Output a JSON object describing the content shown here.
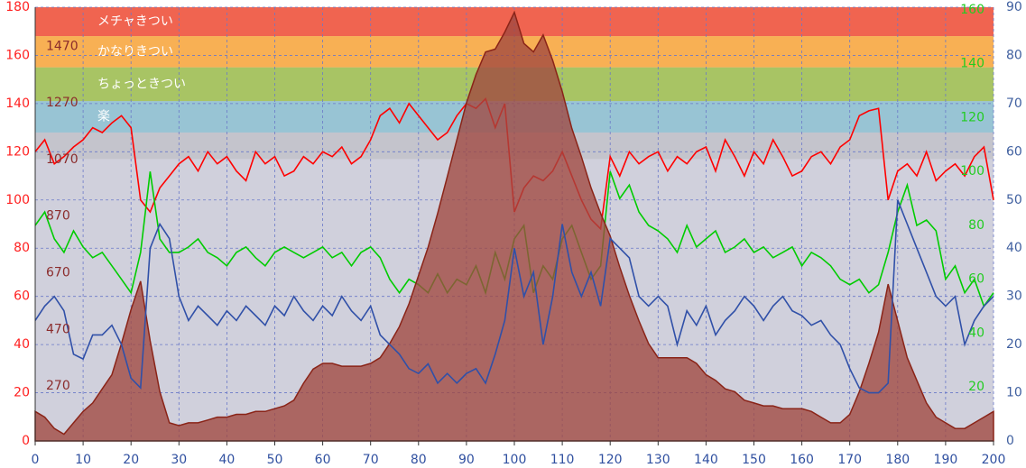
{
  "chart_data": {
    "type": "line",
    "x": [
      0,
      2,
      4,
      6,
      8,
      10,
      12,
      14,
      16,
      18,
      20,
      22,
      24,
      26,
      28,
      30,
      32,
      34,
      36,
      38,
      40,
      42,
      44,
      46,
      48,
      50,
      52,
      54,
      56,
      58,
      60,
      62,
      64,
      66,
      68,
      70,
      72,
      74,
      76,
      78,
      80,
      82,
      84,
      86,
      88,
      90,
      92,
      94,
      96,
      98,
      100,
      102,
      104,
      106,
      108,
      110,
      112,
      114,
      116,
      118,
      120,
      122,
      124,
      126,
      128,
      130,
      132,
      134,
      136,
      138,
      140,
      142,
      144,
      146,
      148,
      150,
      152,
      154,
      156,
      158,
      160,
      162,
      164,
      166,
      168,
      170,
      172,
      174,
      176,
      178,
      180,
      182,
      184,
      186,
      188,
      190,
      192,
      194,
      196,
      198,
      200
    ],
    "xlim": [
      0,
      200
    ],
    "xticks": [
      0,
      10,
      20,
      30,
      40,
      50,
      60,
      70,
      80,
      90,
      100,
      110,
      120,
      130,
      140,
      150,
      160,
      170,
      180,
      190,
      200
    ],
    "ylim": [
      0,
      180
    ],
    "yticks": [
      0,
      20,
      40,
      60,
      80,
      100,
      120,
      140,
      160,
      180
    ],
    "y2lim": [
      0,
      90
    ],
    "y2ticks": [
      0,
      10,
      20,
      30,
      40,
      50,
      60,
      70,
      80,
      90
    ],
    "y3lim": [
      0,
      161
    ],
    "y3ticks": [
      20,
      40,
      60,
      80,
      100,
      120,
      140,
      160
    ],
    "y4lim": [
      76,
      1608
    ],
    "y4ticks": [
      270,
      470,
      670,
      870,
      1070,
      1270,
      1470
    ],
    "grid": true,
    "zones": [
      {
        "label": "メチャきつい",
        "from": 168,
        "to": 180,
        "color": "#f06450"
      },
      {
        "label": "かなりきつい",
        "from": 155,
        "to": 168,
        "color": "#f8b054"
      },
      {
        "label": "ちょっときつい",
        "from": 141,
        "to": 155,
        "color": "#a8c464"
      },
      {
        "label": "楽",
        "from": 128,
        "to": 141,
        "color": "#98c4d4"
      },
      {
        "label": null,
        "from": 117,
        "to": 128,
        "color": "#c4c4cc"
      }
    ],
    "series": [
      {
        "color": "#ff0000",
        "axis": "y",
        "values": [
          120,
          125,
          115,
          118,
          122,
          125,
          130,
          128,
          132,
          135,
          130,
          100,
          95,
          105,
          110,
          115,
          118,
          112,
          120,
          115,
          118,
          112,
          108,
          120,
          115,
          118,
          110,
          112,
          118,
          115,
          120,
          118,
          122,
          115,
          118,
          125,
          135,
          138,
          132,
          140,
          135,
          130,
          125,
          128,
          135,
          140,
          138,
          142,
          130,
          140,
          95,
          105,
          110,
          108,
          112,
          120,
          110,
          100,
          92,
          88,
          118,
          110,
          120,
          115,
          118,
          120,
          112,
          118,
          115,
          120,
          122,
          112,
          125,
          118,
          110,
          120,
          115,
          125,
          118,
          110,
          112,
          118,
          120,
          115,
          122,
          125,
          135,
          137,
          138,
          100,
          112,
          115,
          110,
          120,
          108,
          112,
          115,
          110,
          118,
          122,
          100
        ]
      },
      {
        "color": "#00cc00",
        "axis": "y3",
        "values": [
          80,
          85,
          75,
          70,
          78,
          72,
          68,
          70,
          65,
          60,
          55,
          70,
          100,
          75,
          70,
          70,
          72,
          75,
          70,
          68,
          65,
          70,
          72,
          68,
          65,
          70,
          72,
          70,
          68,
          70,
          72,
          68,
          70,
          65,
          70,
          72,
          68,
          60,
          55,
          60,
          58,
          55,
          62,
          55,
          60,
          58,
          65,
          55,
          70,
          60,
          75,
          80,
          55,
          65,
          60,
          75,
          80,
          70,
          60,
          65,
          100,
          90,
          95,
          85,
          80,
          78,
          75,
          70,
          80,
          72,
          75,
          78,
          70,
          72,
          75,
          70,
          72,
          68,
          70,
          72,
          65,
          70,
          68,
          65,
          60,
          58,
          60,
          55,
          58,
          70,
          85,
          95,
          80,
          82,
          78,
          60,
          65,
          55,
          60,
          50,
          55
        ]
      },
      {
        "color": "#3050a8",
        "axis": "y2",
        "values": [
          25,
          28,
          30,
          27,
          18,
          17,
          22,
          22,
          24,
          20,
          13,
          11,
          40,
          45,
          42,
          30,
          25,
          28,
          26,
          24,
          27,
          25,
          28,
          26,
          24,
          28,
          26,
          30,
          27,
          25,
          28,
          26,
          30,
          27,
          25,
          28,
          22,
          20,
          18,
          15,
          14,
          16,
          12,
          14,
          12,
          14,
          15,
          12,
          18,
          25,
          40,
          30,
          35,
          20,
          30,
          45,
          35,
          30,
          35,
          28,
          42,
          40,
          38,
          30,
          28,
          30,
          28,
          20,
          27,
          24,
          28,
          22,
          25,
          27,
          30,
          28,
          25,
          28,
          30,
          27,
          26,
          24,
          25,
          22,
          20,
          15,
          11,
          10,
          10,
          12,
          50,
          45,
          40,
          35,
          30,
          28,
          30,
          20,
          25,
          28,
          30
        ]
      },
      {
        "color": "#a04840",
        "axis": "y4",
        "area": true,
        "values": [
          180,
          160,
          120,
          100,
          140,
          180,
          210,
          260,
          310,
          420,
          540,
          640,
          430,
          250,
          140,
          130,
          140,
          140,
          150,
          160,
          160,
          170,
          170,
          180,
          180,
          190,
          200,
          220,
          280,
          330,
          350,
          350,
          340,
          340,
          340,
          350,
          370,
          420,
          480,
          560,
          660,
          760,
          880,
          1010,
          1140,
          1270,
          1370,
          1450,
          1460,
          1520,
          1590,
          1480,
          1450,
          1510,
          1420,
          1310,
          1180,
          1080,
          970,
          880,
          800,
          690,
          590,
          500,
          420,
          370,
          370,
          370,
          370,
          350,
          310,
          290,
          260,
          250,
          220,
          210,
          200,
          200,
          190,
          190,
          190,
          180,
          160,
          140,
          140,
          170,
          250,
          350,
          460,
          630,
          500,
          370,
          290,
          210,
          160,
          140,
          120,
          120,
          140,
          160,
          180
        ]
      }
    ]
  }
}
